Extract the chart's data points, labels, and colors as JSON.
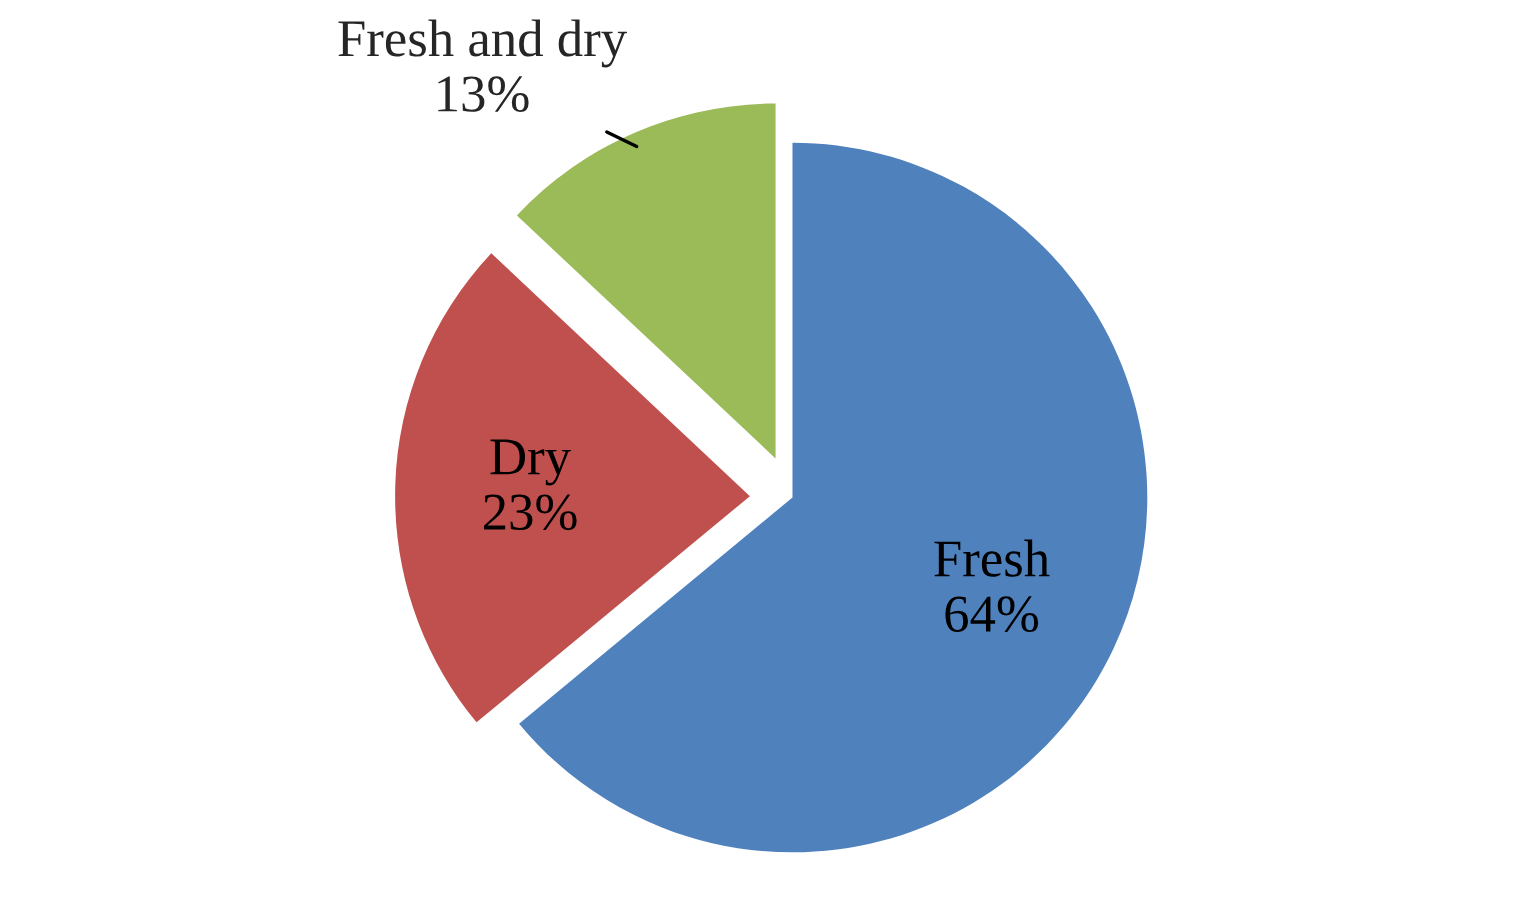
{
  "chart_data": {
    "type": "pie",
    "categories": [
      "Fresh",
      "Dry",
      "Fresh and dry"
    ],
    "values": [
      64,
      23,
      13
    ],
    "colors": [
      "#4f81bd",
      "#c0504d",
      "#9bbb59"
    ],
    "value_labels": [
      "64%",
      "23%",
      "13%"
    ]
  }
}
